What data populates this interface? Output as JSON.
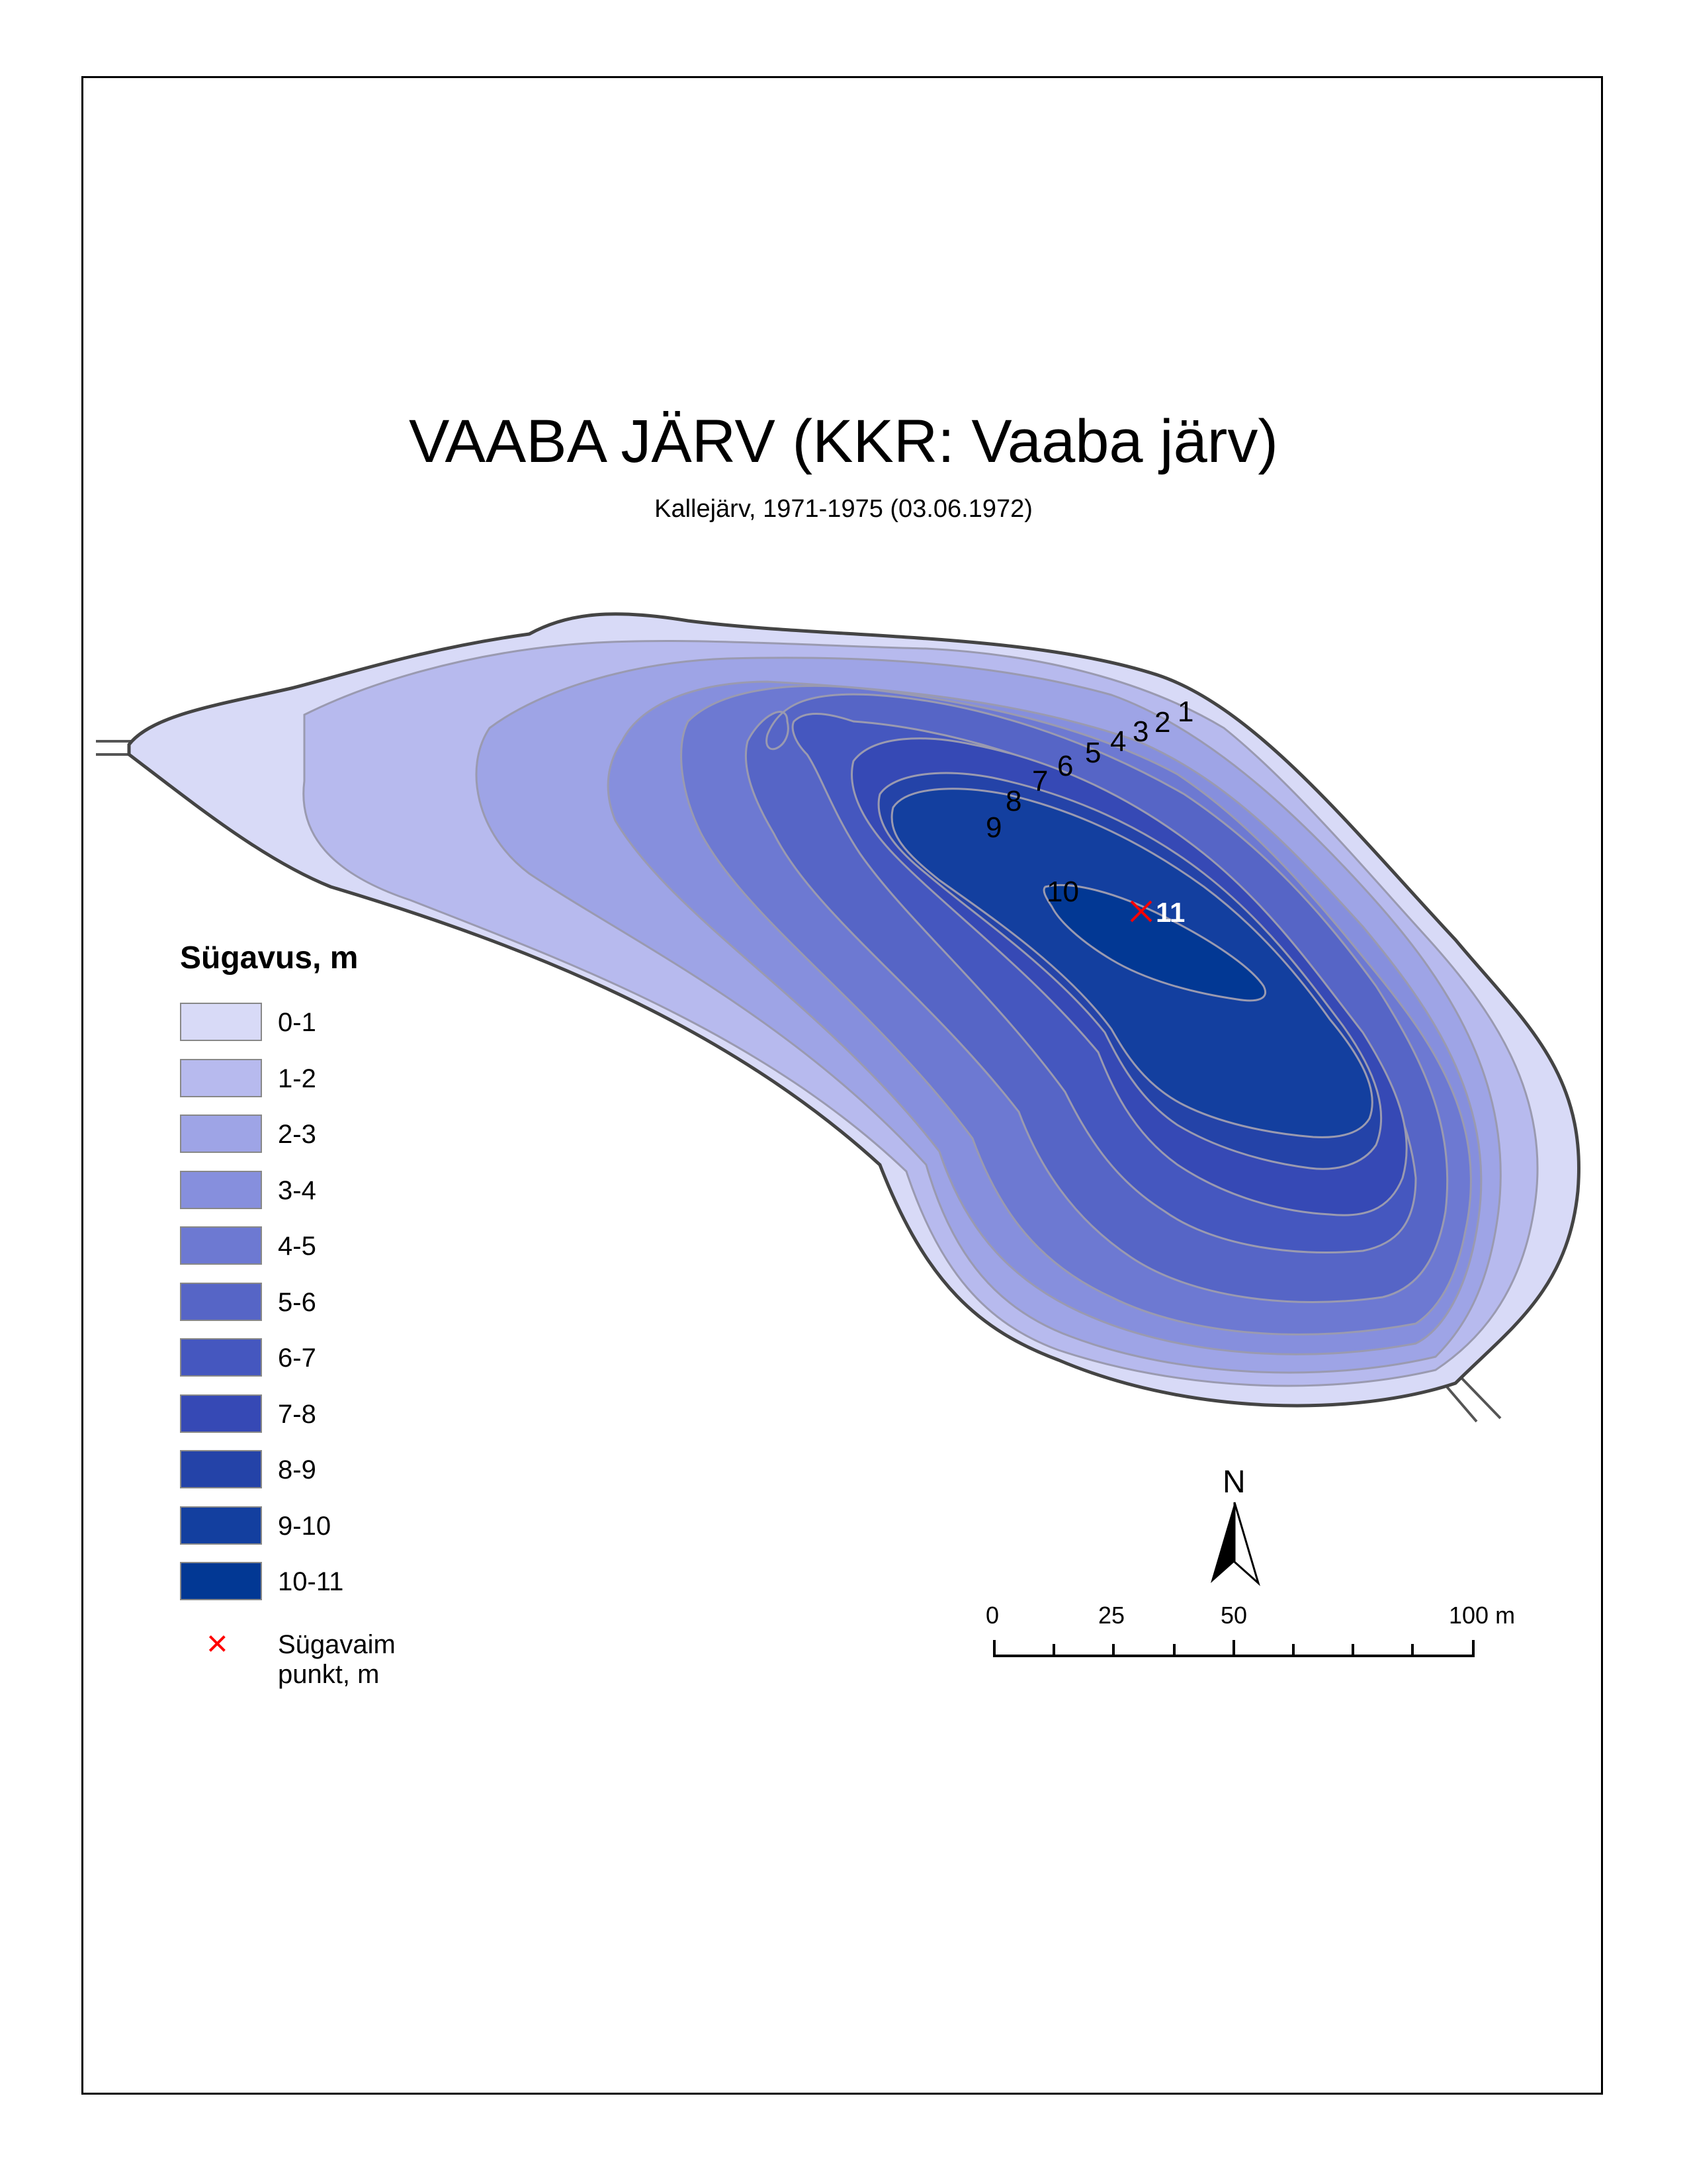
{
  "title": "VAABA JÄRV (KKR: Vaaba järv)",
  "subtitle": "Kallejärv, 1971-1975 (03.06.1972)",
  "legend": {
    "title": "Sügavus, m",
    "classes": [
      {
        "label": "0-1",
        "color": "#d8daf7"
      },
      {
        "label": "1-2",
        "color": "#b7baee"
      },
      {
        "label": "2-3",
        "color": "#9ea4e6"
      },
      {
        "label": "3-4",
        "color": "#868fdd"
      },
      {
        "label": "4-5",
        "color": "#6d79d2"
      },
      {
        "label": "5-6",
        "color": "#5665c6"
      },
      {
        "label": "6-7",
        "color": "#4557bf"
      },
      {
        "label": "7-8",
        "color": "#3649b5"
      },
      {
        "label": "8-9",
        "color": "#2443a8"
      },
      {
        "label": "9-10",
        "color": "#133f9f"
      },
      {
        "label": "10-11",
        "color": "#023894"
      }
    ],
    "deepest_point_label": "Sügavaim punkt, m"
  },
  "contour_labels": [
    "1",
    "2",
    "3",
    "4",
    "5",
    "6",
    "7",
    "8",
    "9",
    "10"
  ],
  "deepest_point": {
    "depth_label": "11",
    "symbol": "×",
    "color": "#ff0000"
  },
  "north_arrow": {
    "label": "N"
  },
  "scale_bar": {
    "labels": [
      "0",
      "25",
      "50",
      "100 m"
    ]
  }
}
